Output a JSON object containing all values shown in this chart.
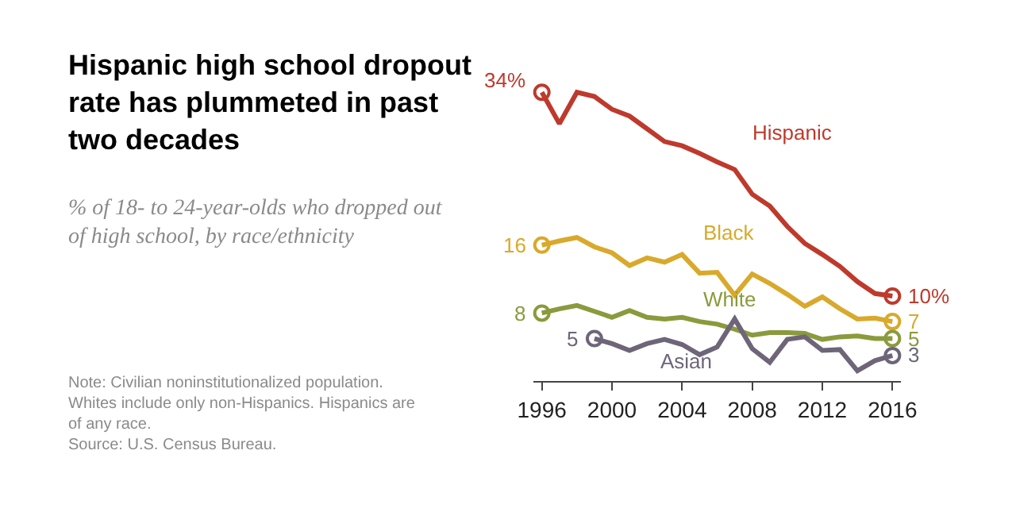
{
  "chart_data": {
    "type": "line",
    "title": "Hispanic high school dropout rate has plummeted in past two decades",
    "subtitle": "% of 18- to 24-year-olds who dropped out of high school, by race/ethnicity",
    "annotations": [
      "Note: Civilian noninstitutionalized population. Whites include only non-Hispanics. Hispanics are of any race.",
      "Source: U.S. Census Bureau."
    ],
    "x": [
      1996,
      1997,
      1998,
      1999,
      2000,
      2001,
      2002,
      2003,
      2004,
      2005,
      2006,
      2007,
      2008,
      2009,
      2010,
      2011,
      2012,
      2013,
      2014,
      2015,
      2016
    ],
    "series": [
      {
        "name": "Hispanic",
        "color": "#be3a2c",
        "values": [
          34,
          30.3,
          34,
          33.5,
          32.0,
          31.2,
          29.7,
          28.2,
          27.7,
          26.8,
          25.8,
          24.9,
          22.0,
          20.6,
          18.2,
          16.2,
          14.9,
          13.5,
          11.7,
          10.3,
          10
        ],
        "value_labels": [
          "34%",
          null,
          null,
          null,
          null,
          null,
          null,
          null,
          null,
          null,
          null,
          null,
          null,
          null,
          null,
          null,
          null,
          null,
          null,
          null,
          "10%"
        ]
      },
      {
        "name": "Black",
        "color": "#d9a92c",
        "values": [
          16,
          16.5,
          16.9,
          15.8,
          15.1,
          13.6,
          14.5,
          14.0,
          14.9,
          12.7,
          12.8,
          10.1,
          12.6,
          11.5,
          10.2,
          8.8,
          9.9,
          8.5,
          7.3,
          7.4,
          7
        ],
        "value_labels": [
          "16",
          null,
          null,
          null,
          null,
          null,
          null,
          null,
          null,
          null,
          null,
          null,
          null,
          null,
          null,
          null,
          null,
          null,
          null,
          null,
          "7"
        ]
      },
      {
        "name": "White",
        "color": "#8b9a3c",
        "values": [
          8,
          8.5,
          8.9,
          8.2,
          7.5,
          8.3,
          7.5,
          7.3,
          7.5,
          7.0,
          6.7,
          6.1,
          5.4,
          5.7,
          5.7,
          5.6,
          4.9,
          5.2,
          5.3,
          5.0,
          5
        ],
        "value_labels": [
          "8",
          null,
          null,
          null,
          null,
          null,
          null,
          null,
          null,
          null,
          null,
          null,
          null,
          null,
          null,
          null,
          null,
          null,
          null,
          null,
          "5"
        ]
      },
      {
        "name": "Asian",
        "color": "#6e6579",
        "x": [
          1999,
          2000,
          2001,
          2002,
          2003,
          2004,
          2005,
          2006,
          2007,
          2008,
          2009,
          2010,
          2011,
          2012,
          2013,
          2014,
          2015,
          2016
        ],
        "values": [
          5,
          4.4,
          3.6,
          4.4,
          4.9,
          4.3,
          3.1,
          4.0,
          7.3,
          3.8,
          2.2,
          4.9,
          5.2,
          3.6,
          3.7,
          1.2,
          2.4,
          3
        ],
        "value_labels": [
          "5",
          null,
          null,
          null,
          null,
          null,
          null,
          null,
          null,
          null,
          null,
          null,
          null,
          null,
          null,
          null,
          null,
          "3"
        ]
      }
    ],
    "xlim": [
      1995.5,
      2016.5
    ],
    "xticks": [
      1996,
      2000,
      2004,
      2008,
      2012,
      2016
    ],
    "tick_labels": "x",
    "legend": false,
    "line_style": "solid"
  }
}
